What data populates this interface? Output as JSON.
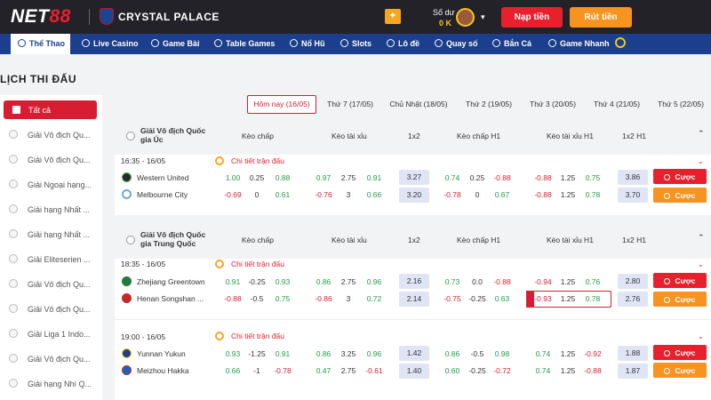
{
  "header": {
    "logo_a": "NET",
    "logo_b": "88",
    "club": "CRYSTAL PALACE",
    "balance_label": "Số dư",
    "balance_value": "0 K",
    "deposit_label": "Nạp tiền",
    "withdraw_label": "Rút tiền"
  },
  "nav": [
    {
      "label": "Thể Thao",
      "icon": "soccer-icon"
    },
    {
      "label": "Live Casino",
      "icon": "casino-icon"
    },
    {
      "label": "Game Bài",
      "icon": "cards-icon"
    },
    {
      "label": "Table Games",
      "icon": "table-icon"
    },
    {
      "label": "Nổ Hũ",
      "icon": "slot-icon"
    },
    {
      "label": "Slots",
      "icon": "slots-icon"
    },
    {
      "label": "Lô đề",
      "icon": "lottery-icon"
    },
    {
      "label": "Quay số",
      "icon": "wheel-icon"
    },
    {
      "label": "Bắn Cá",
      "icon": "fish-icon"
    },
    {
      "label": "Game Nhanh",
      "icon": "rocket-icon"
    }
  ],
  "page_title": "LỊCH THI ĐẤU",
  "sidebar": {
    "all_label": "Tất cả",
    "items": [
      "Giải Vô địch Qu...",
      "Giải Vô địch Qu...",
      "Giải Ngoại hạng...",
      "Giải hạng Nhất ...",
      "Giải hạng Nhất ...",
      "Giải Eliteserien ...",
      "Giải Vô địch Qu...",
      "Giải Vô địch Qu...",
      "Giải Liga 1 Indo...",
      "Giải Vô địch Qu...",
      "Giải hạng Nhì Q..."
    ]
  },
  "date_tabs": [
    "Hôm nay (16/05)",
    "Thứ 7 (17/05)",
    "Chủ Nhật (18/05)",
    "Thứ 2 (19/05)",
    "Thứ 3 (20/05)",
    "Thứ 4 (21/05)",
    "Thứ 5 (22/05)"
  ],
  "columns": [
    "Kèo chấp",
    "Kèo tài xỉu",
    "1x2",
    "Kèo chấp H1",
    "Kèo tài xỉu H1",
    "1x2 H1"
  ],
  "detail_label": "Chi tiết trận đấu",
  "bet_label": "Cược",
  "leagues": [
    {
      "name": "Giải Vô địch Quốc gia Úc",
      "matches": [
        {
          "time": "16:35 - 16/05",
          "home": {
            "name": "Western United",
            "hc": "1.00",
            "line": "0.25",
            "hc2": "0.88",
            "ou": "0.97",
            "ouline": "2.75",
            "ou2": "0.91",
            "x12": "3.27",
            "h1hc": "0.74",
            "h1line": "0.25",
            "h1hc2": "-0.88",
            "h1ou": "-0.88",
            "h1ouline": "1.25",
            "h1ou2": "0.75",
            "h1x12": "3.86"
          },
          "away": {
            "name": "Melbourne City",
            "hc": "-0.69",
            "line": "0",
            "hc2": "0.61",
            "ou": "-0.76",
            "ouline": "3",
            "ou2": "0.66",
            "x12": "3.20",
            "h1hc": "-0.78",
            "h1line": "0",
            "h1hc2": "0.67",
            "h1ou": "-0.88",
            "h1ouline": "1.25",
            "h1ou2": "0.78",
            "h1x12": "3.70"
          }
        }
      ]
    },
    {
      "name": "Giải Vô địch Quốc gia Trung Quốc",
      "matches": [
        {
          "time": "18:35 - 16/05",
          "home": {
            "name": "Zhejiang Greentown",
            "hc": "0.91",
            "line": "-0.25",
            "hc2": "0.93",
            "ou": "0.86",
            "ouline": "2.75",
            "ou2": "0.96",
            "x12": "2.16",
            "h1hc": "0.73",
            "h1line": "0.0",
            "h1hc2": "-0.88",
            "h1ou": "-0.94",
            "h1ouline": "1.25",
            "h1ou2": "0.76",
            "h1x12": "2.80"
          },
          "away": {
            "name": "Henan Songshan ...",
            "hc": "-0.88",
            "line": "-0.5",
            "hc2": "0.75",
            "ou": "-0.86",
            "ouline": "3",
            "ou2": "0.72",
            "x12": "2.14",
            "h1hc": "-0.75",
            "h1line": "-0.25",
            "h1hc2": "0.63",
            "h1ou": "-0.93",
            "h1ouline": "1.25",
            "h1ou2": "0.78",
            "h1x12": "2.76"
          }
        },
        {
          "time": "19:00 - 16/05",
          "home": {
            "name": "Yunnan Yukun",
            "hc": "0.93",
            "line": "-1.25",
            "hc2": "0.91",
            "ou": "0.86",
            "ouline": "3.25",
            "ou2": "0.96",
            "x12": "1.42",
            "h1hc": "0.86",
            "h1line": "-0.5",
            "h1hc2": "0.98",
            "h1ou": "0.74",
            "h1ouline": "1.25",
            "h1ou2": "-0.92",
            "h1x12": "1.88"
          },
          "away": {
            "name": "Meizhou Hakka",
            "hc": "0.66",
            "line": "-1",
            "hc2": "-0.78",
            "ou": "0.47",
            "ouline": "2.75",
            "ou2": "-0.61",
            "x12": "1.40",
            "h1hc": "0.60",
            "h1line": "-0.25",
            "h1hc2": "-0.72",
            "h1ou": "0.74",
            "h1ouline": "1.25",
            "h1ou2": "-0.88",
            "h1x12": "1.87"
          }
        }
      ]
    }
  ]
}
